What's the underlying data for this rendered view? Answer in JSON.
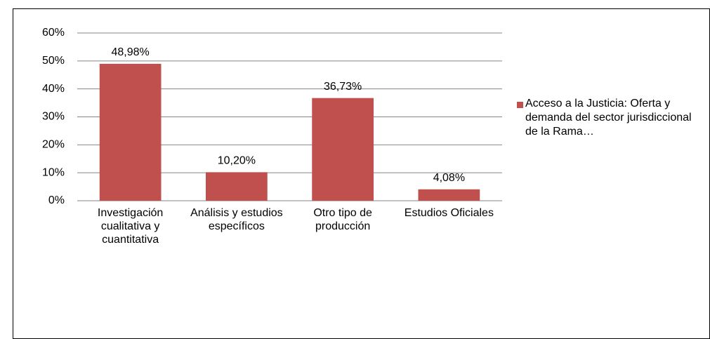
{
  "chart_data": {
    "type": "bar",
    "categories": [
      "Investigación cualitativa y cuantitativa",
      "Análisis y estudios específicos",
      "Otro tipo de producción",
      "Estudios Oficiales"
    ],
    "series": [
      {
        "name": "Acceso a la Justicia: Oferta y demanda del sector jurisdiccional de la Rama…",
        "color": "#c0504d",
        "values": [
          48.98,
          10.2,
          36.73,
          4.08
        ],
        "value_labels": [
          "48,98%",
          "10,20%",
          "36,73%",
          "4,08%"
        ]
      }
    ],
    "ylim": [
      0,
      60
    ],
    "yticks": [
      {
        "value": 0,
        "label": "0%"
      },
      {
        "value": 10,
        "label": "10%"
      },
      {
        "value": 20,
        "label": "20%"
      },
      {
        "value": 30,
        "label": "30%"
      },
      {
        "value": 40,
        "label": "40%"
      },
      {
        "value": 50,
        "label": "50%"
      },
      {
        "value": 60,
        "label": "60%"
      }
    ],
    "grid": true,
    "legend": "right"
  }
}
